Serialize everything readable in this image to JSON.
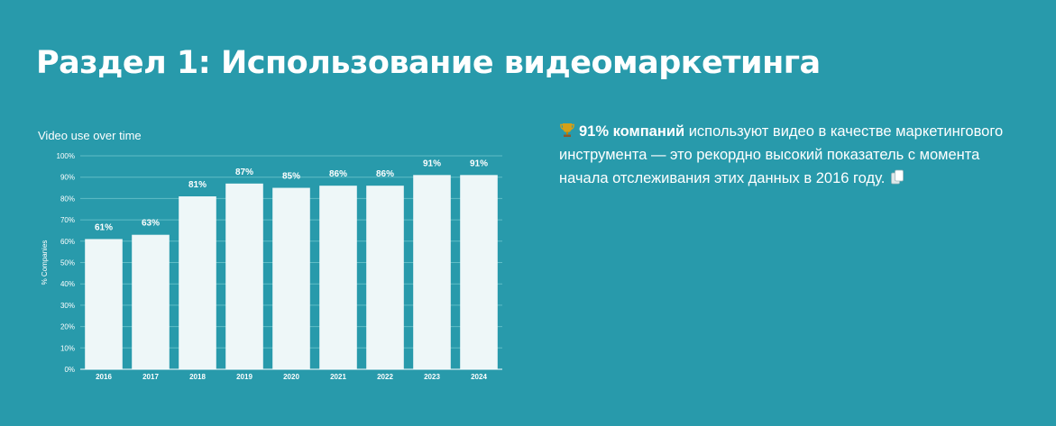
{
  "section": {
    "heading": "Раздел 1: Использование видеомаркетинга"
  },
  "chart_data": {
    "type": "bar",
    "title": "Video use over time",
    "xlabel": "",
    "ylabel": "% Companies",
    "categories": [
      "2016",
      "2017",
      "2018",
      "2019",
      "2020",
      "2021",
      "2022",
      "2023",
      "2024"
    ],
    "values": [
      61,
      63,
      81,
      87,
      85,
      86,
      86,
      91,
      91
    ],
    "data_labels": [
      "61%",
      "63%",
      "81%",
      "87%",
      "85%",
      "86%",
      "86%",
      "91%",
      "91%"
    ],
    "ylim": [
      0,
      100
    ],
    "yticks": [
      0,
      10,
      20,
      30,
      40,
      50,
      60,
      70,
      80,
      90,
      100
    ],
    "ytick_labels": [
      "0%",
      "10%",
      "20%",
      "30%",
      "40%",
      "50%",
      "60%",
      "70%",
      "80%",
      "90%",
      "100%"
    ],
    "grid": true,
    "bar_color": "#eef7f8",
    "grid_color": "#5fbcc6"
  },
  "stat": {
    "icon": "trophy-icon",
    "highlight": "91% компаний",
    "text": " используют видео в качестве маркетингового инструмента — это рекордно высокий показатель с момента начала отслеживания этих данных в 2016 году.",
    "copy_icon": "copy-icon"
  },
  "colors": {
    "background": "#289aab",
    "text": "#ffffff"
  }
}
